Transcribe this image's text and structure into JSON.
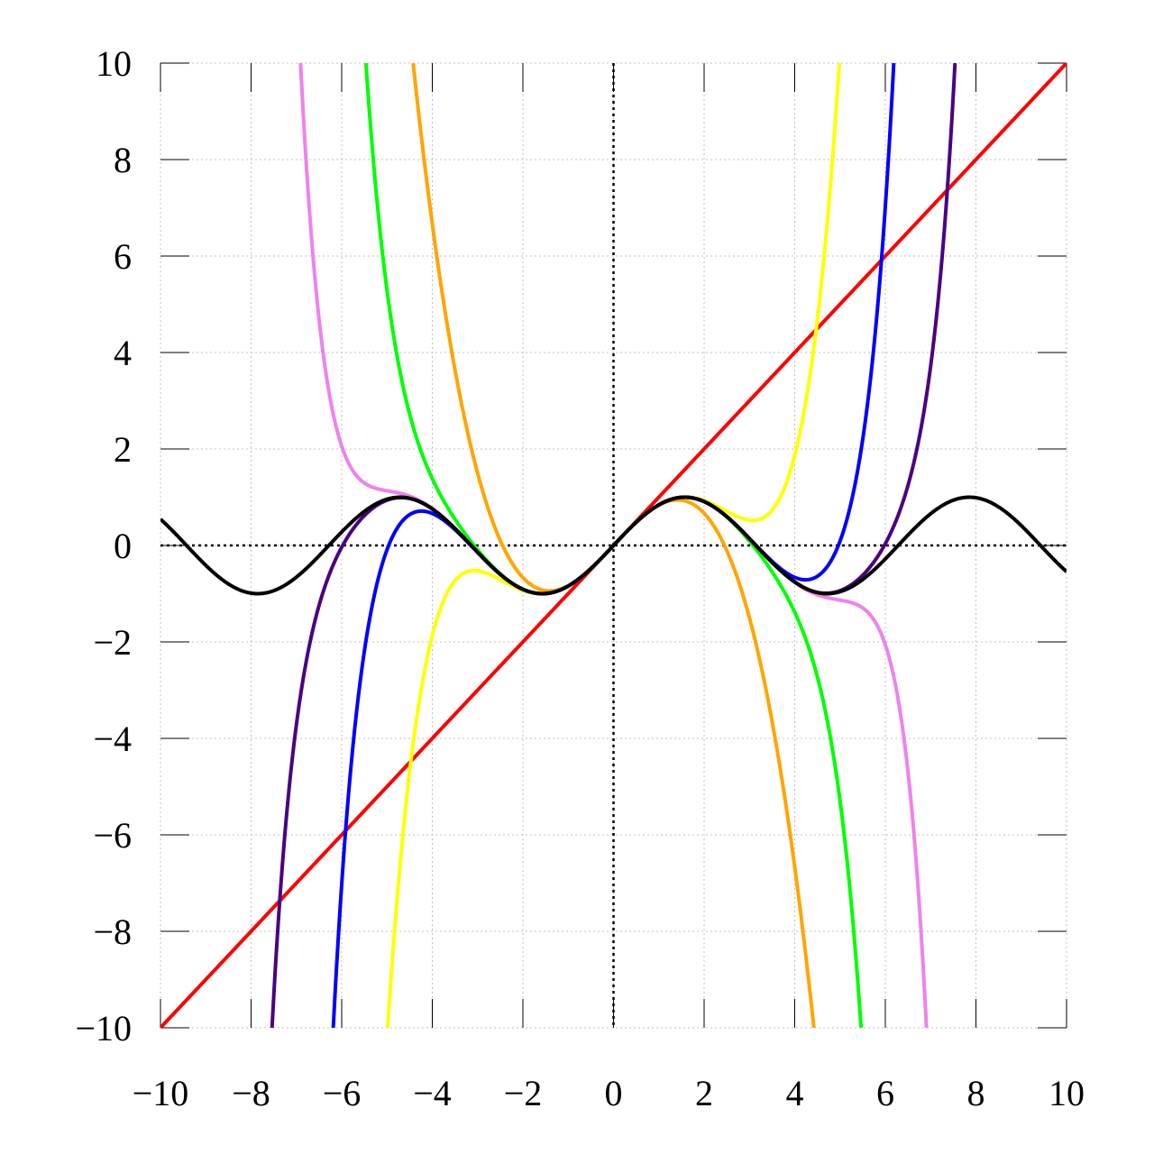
{
  "chart_data": {
    "type": "line",
    "title": "",
    "xlabel": "",
    "ylabel": "",
    "xlim": [
      -10,
      10
    ],
    "ylim": [
      -10,
      10
    ],
    "grid": true,
    "legend": "none",
    "x_ticks": [
      "−10",
      "−8",
      "−6",
      "−4",
      "−2",
      "0",
      "2",
      "4",
      "6",
      "8",
      "10"
    ],
    "y_ticks": [
      "10",
      "8",
      "6",
      "4",
      "2",
      "0",
      "−2",
      "−4",
      "−6",
      "−8",
      "−10"
    ],
    "x_tick_values": [
      -10,
      -8,
      -6,
      -4,
      -2,
      0,
      2,
      4,
      6,
      8,
      10
    ],
    "y_tick_values": [
      10,
      8,
      6,
      4,
      2,
      0,
      -2,
      -4,
      -6,
      -8,
      -10
    ],
    "zero_axes": "dotted",
    "series": [
      {
        "function": "taylor_sin",
        "degree": 1,
        "color": "#ff0000"
      },
      {
        "function": "taylor_sin",
        "degree": 3,
        "color": "#ffa500"
      },
      {
        "function": "taylor_sin",
        "degree": 5,
        "color": "#ffff00"
      },
      {
        "function": "taylor_sin",
        "degree": 7,
        "color": "#00ff00"
      },
      {
        "function": "taylor_sin",
        "degree": 9,
        "color": "#0000ff"
      },
      {
        "function": "taylor_sin",
        "degree": 11,
        "color": "#ee82ee"
      },
      {
        "function": "taylor_sin",
        "degree": 13,
        "color": "#4b0082"
      },
      {
        "function": "sin",
        "color": "#000000"
      }
    ]
  }
}
